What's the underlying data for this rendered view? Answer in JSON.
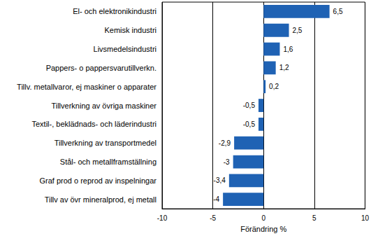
{
  "chart_data": {
    "type": "bar",
    "orientation": "horizontal",
    "categories": [
      "El- och elektronikindustri",
      "Kemisk industri",
      "Livsmedelsindustri",
      "Pappers- o pappersvarutillverkn.",
      "Tillv. metallvaror, ej maskiner o apparater",
      "Tillverkning av övriga maskiner",
      "Textil-, beklädnads- och läderindustri",
      "Tillverkning av transportmedel",
      "Stål- och metallframställning",
      "Graf prod o reprod av inspelningar",
      "Tillv av övr mineralprod, ej metall"
    ],
    "values": [
      6.5,
      2.5,
      1.6,
      1.2,
      0.2,
      -0.5,
      -0.5,
      -2.9,
      -3,
      -3.4,
      -4
    ],
    "value_labels": [
      "6,5",
      "2,5",
      "1,6",
      "1,2",
      "0,2",
      "-0,5",
      "-0,5",
      "-2,9",
      "-3",
      "-3,4",
      "-4"
    ],
    "data_labels": true,
    "color": "#1f62b4",
    "x_label": "Förändring %",
    "xlim": [
      -10,
      10
    ],
    "xticks": [
      -10,
      -5,
      0,
      5,
      10
    ],
    "grid": true
  }
}
